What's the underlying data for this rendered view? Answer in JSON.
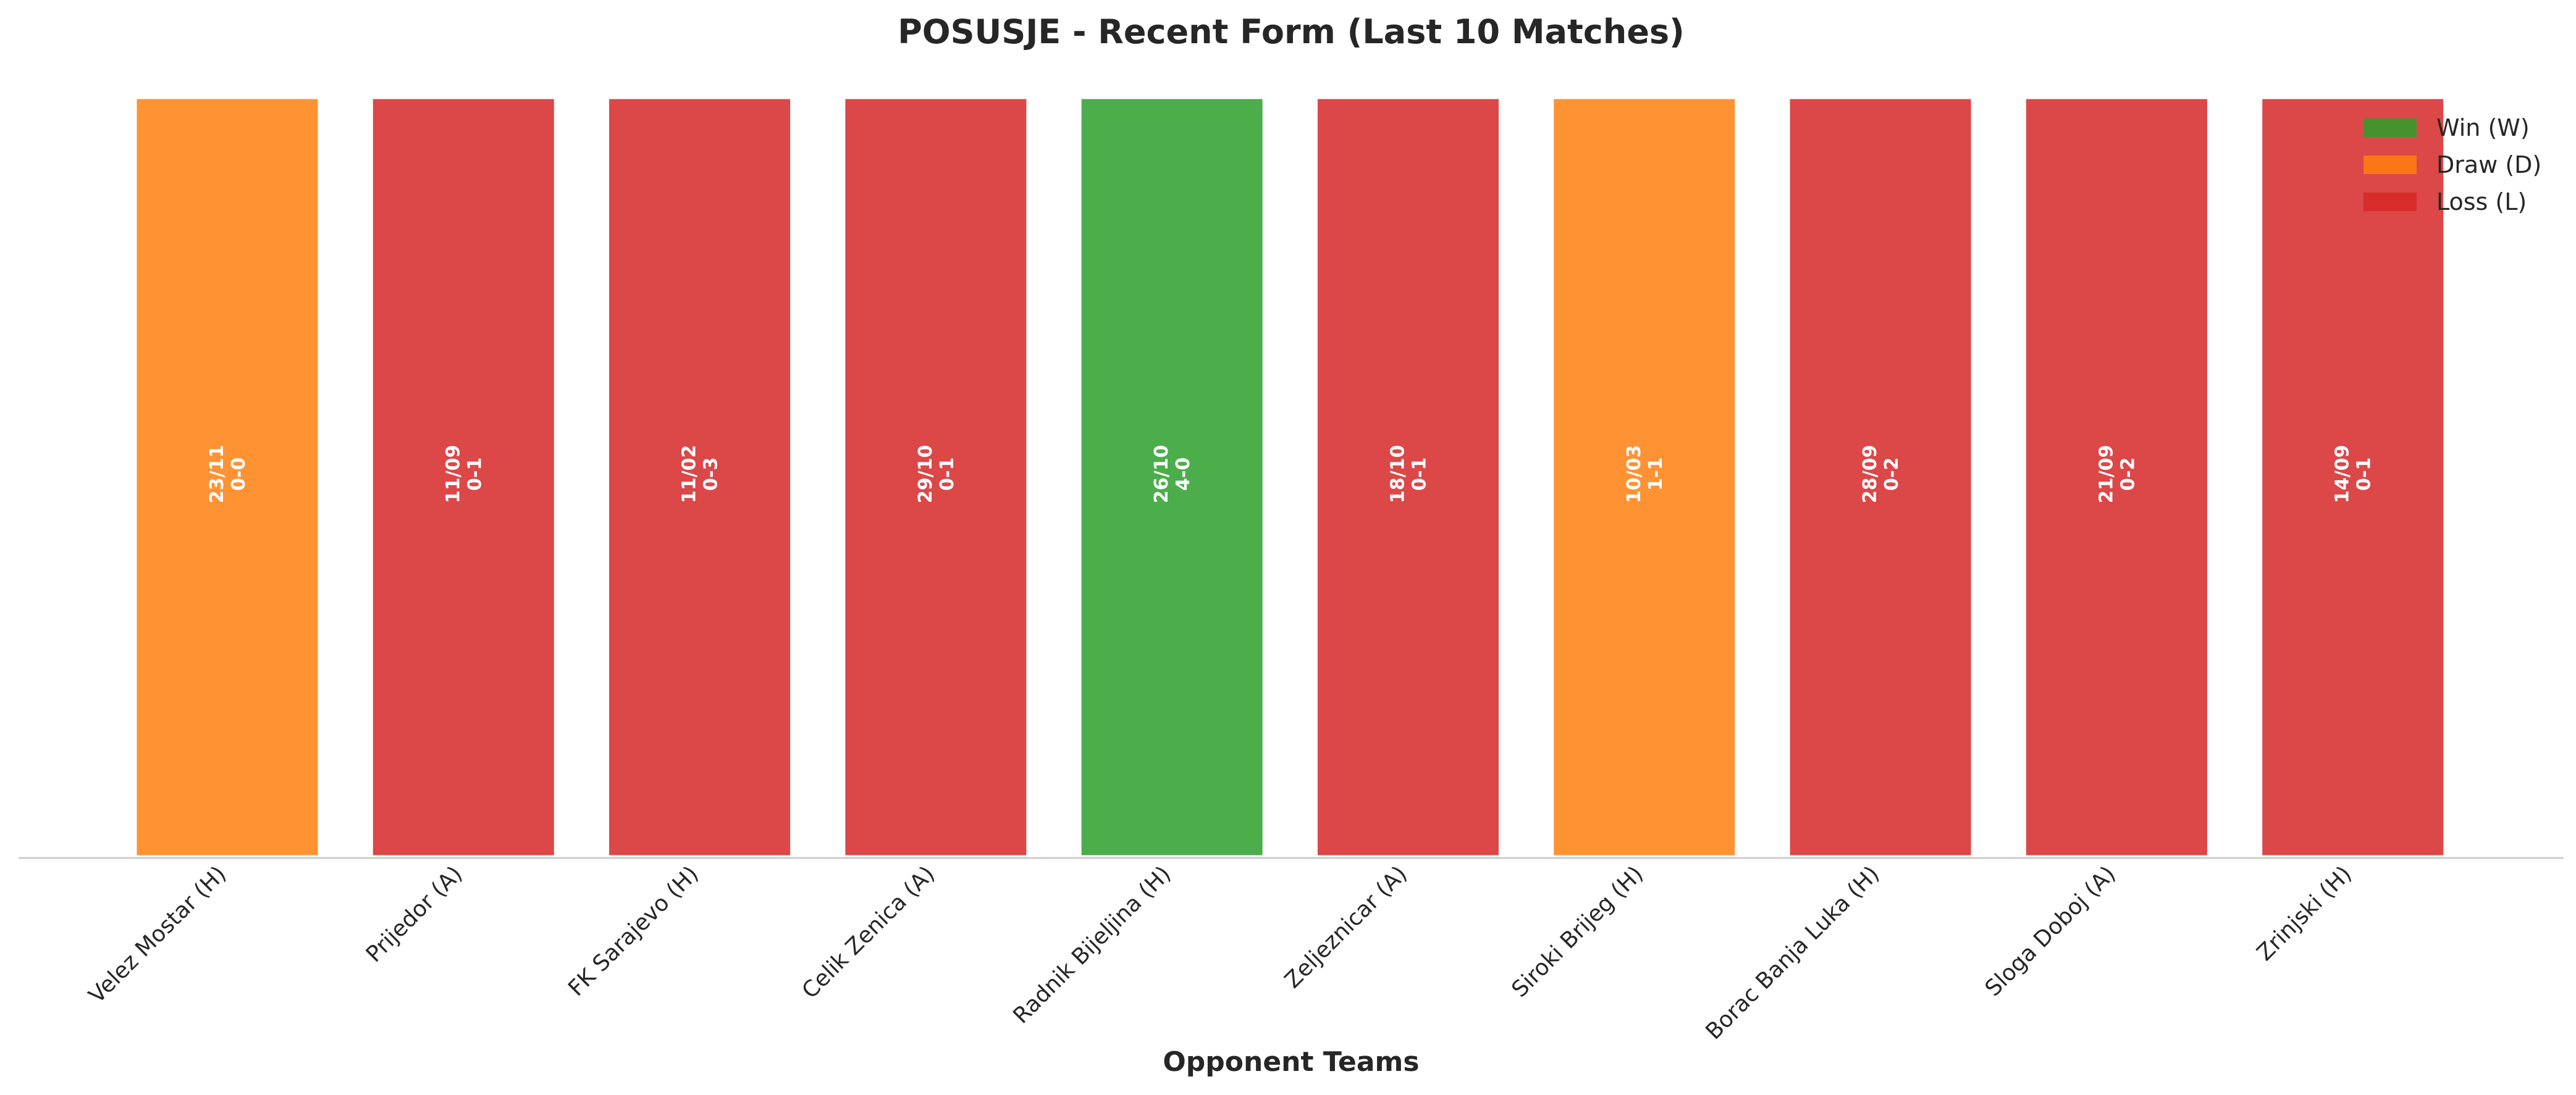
{
  "chart_data": {
    "type": "bar",
    "title": "POSUSJE - Recent Form (Last 10 Matches)",
    "xlabel": "Opponent Teams",
    "ylabel": "",
    "ylim": [
      0,
      1
    ],
    "grid": false,
    "legend_position": "top-right",
    "categories": [
      "Velez Mostar (H)",
      "Prijedor (A)",
      "FK Sarajevo (H)",
      "Celik Zenica (A)",
      "Radnik Bijeljina (H)",
      "Zeljeznicar (A)",
      "Siroki Brijeg (H)",
      "Borac Banja Luka (H)",
      "Sloga Doboj (A)",
      "Zrinjski (H)"
    ],
    "values": [
      1,
      1,
      1,
      1,
      1,
      1,
      1,
      1,
      1,
      1
    ],
    "results": [
      "D",
      "L",
      "L",
      "L",
      "W",
      "L",
      "D",
      "L",
      "L",
      "L"
    ],
    "dates": [
      "23/11",
      "11/09",
      "11/02",
      "29/10",
      "26/10",
      "18/10",
      "10/03",
      "28/09",
      "21/09",
      "14/09"
    ],
    "scores": [
      "0-0",
      "0-1",
      "0-3",
      "0-1",
      "4-0",
      "0-1",
      "1-1",
      "0-2",
      "0-2",
      "0-1"
    ],
    "legend": [
      {
        "key": "W",
        "label": "Win (W)",
        "color": "#2ca02c"
      },
      {
        "key": "D",
        "label": "Draw (D)",
        "color": "#ff7f0e"
      },
      {
        "key": "L",
        "label": "Loss (L)",
        "color": "#d62728"
      }
    ],
    "colors": {
      "W": "#2ca02c",
      "D": "#ff7f0e",
      "L": "#d62728"
    }
  }
}
